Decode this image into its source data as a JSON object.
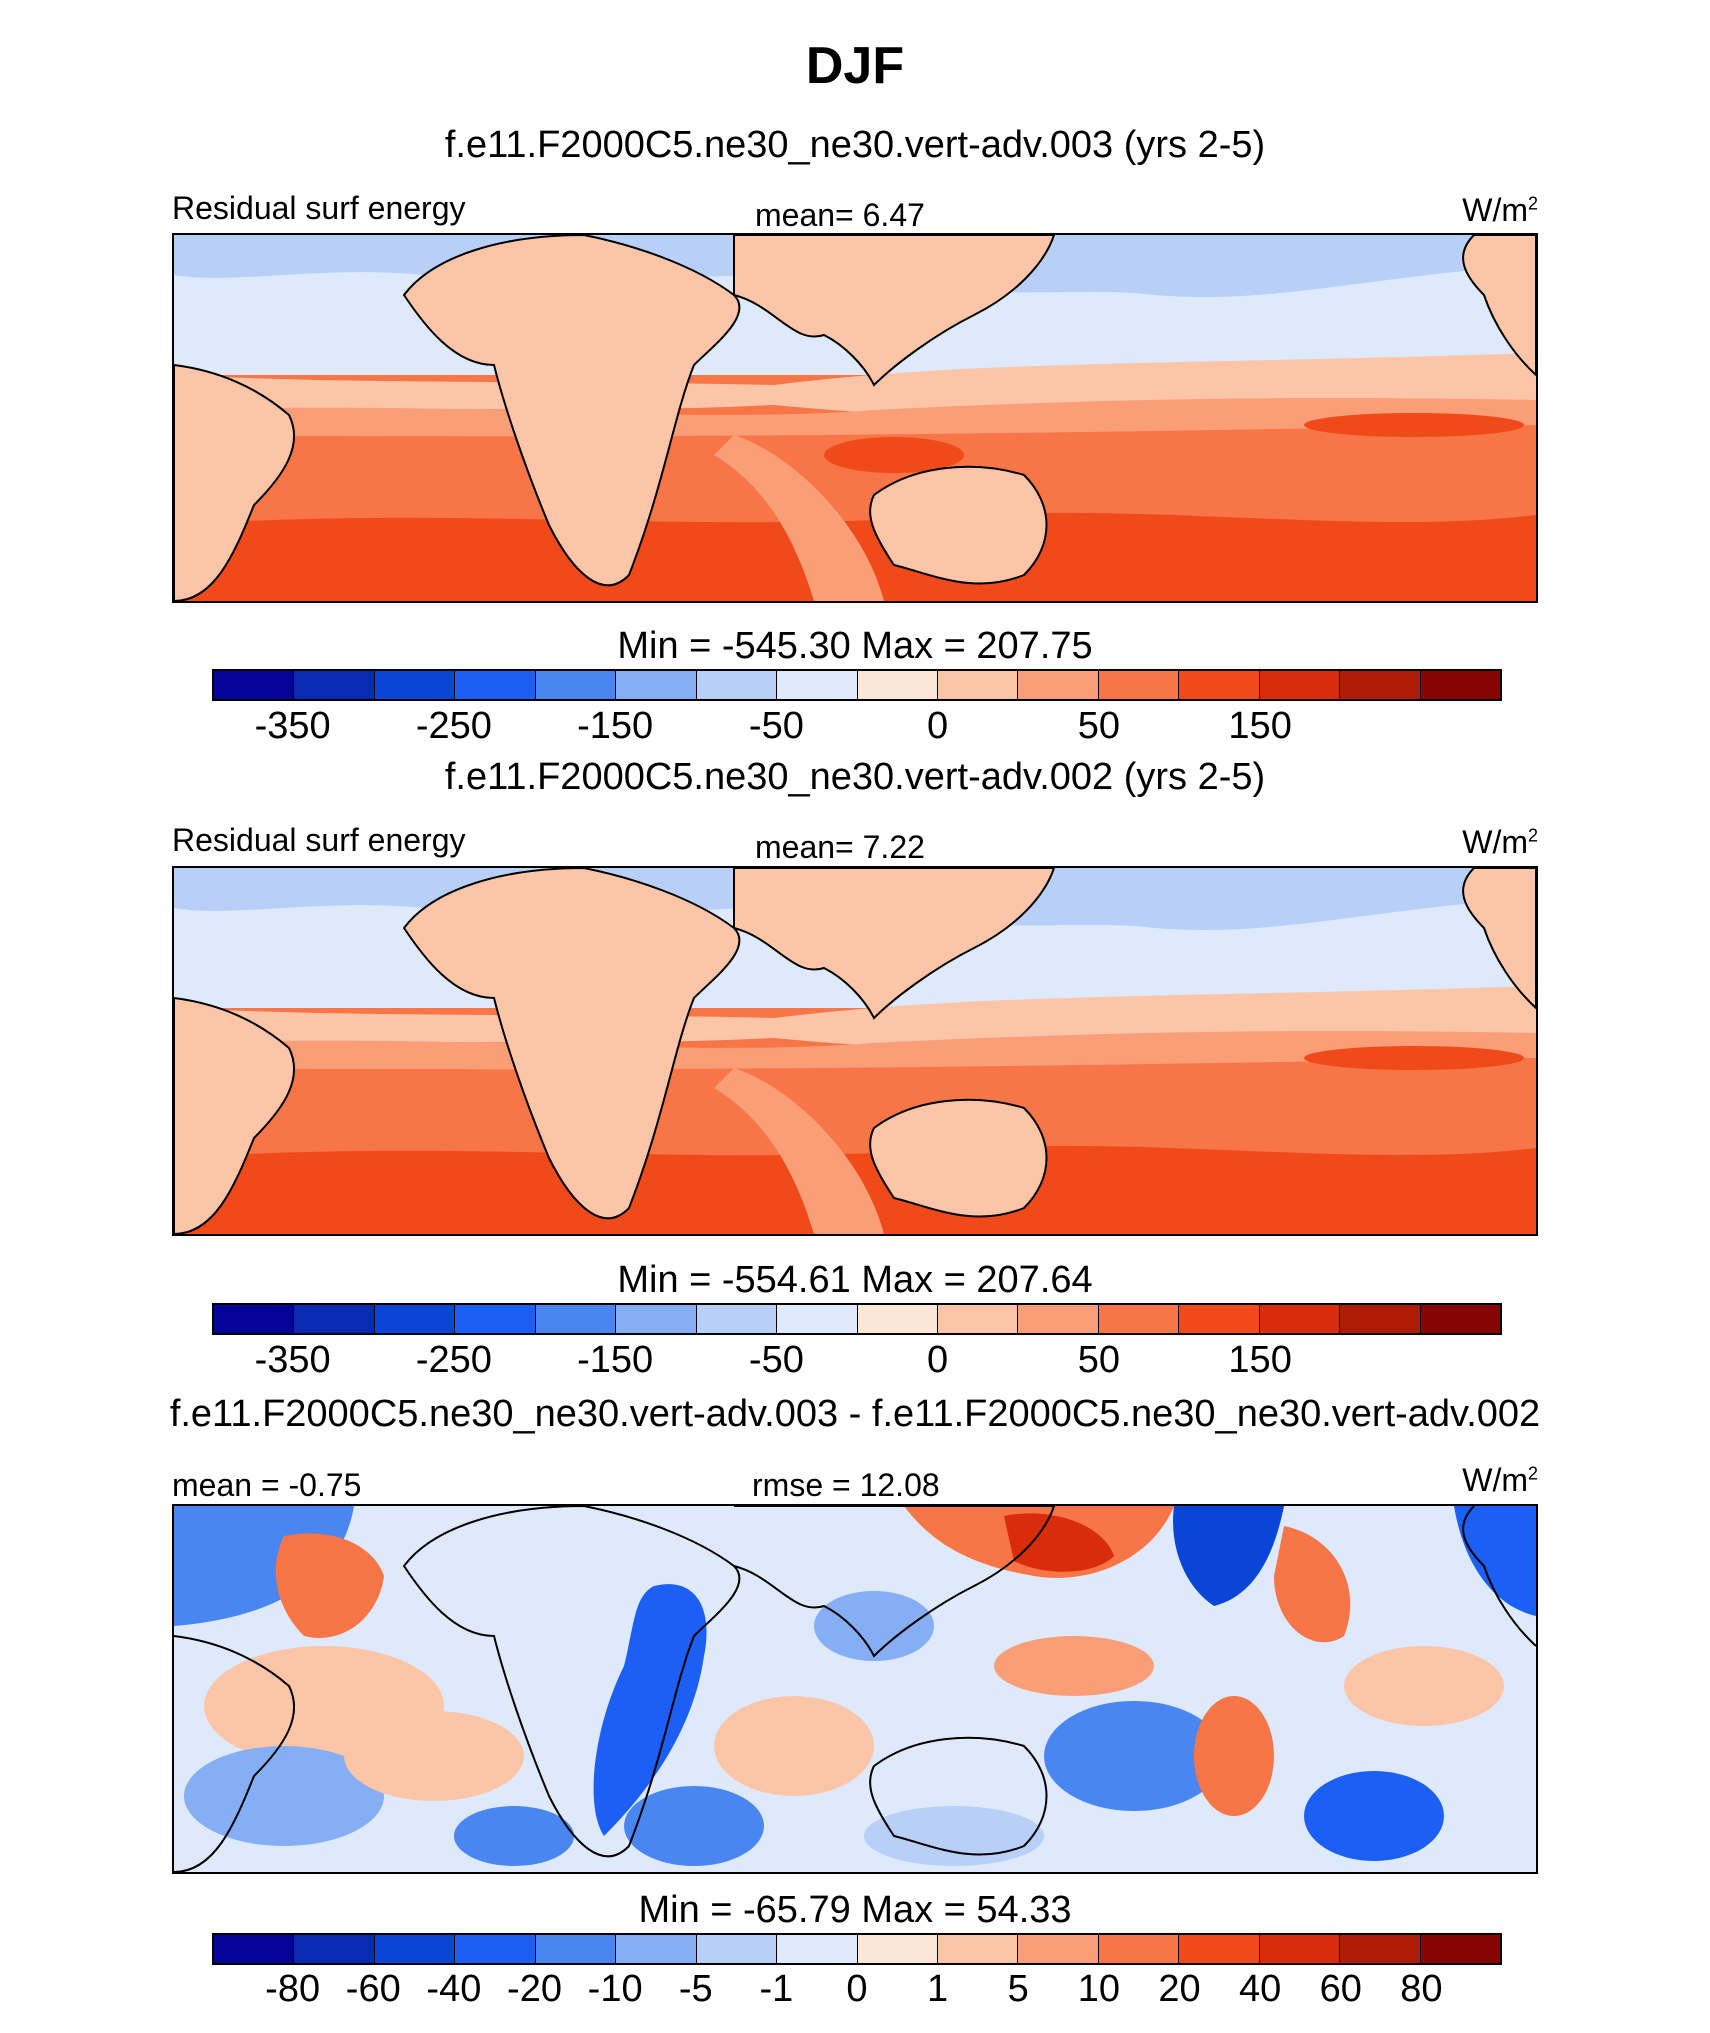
{
  "title": "DJF",
  "units_base": "W/m",
  "units_exp": "2",
  "colormap": [
    "#04049a",
    "#0a2ab4",
    "#0b45d8",
    "#1b5ff4",
    "#4a86f2",
    "#86aef4",
    "#b8cff8",
    "#deeafc",
    "#fde8d8",
    "#fcc5a8",
    "#fa9e78",
    "#f77546",
    "#f04a1a",
    "#d82c0a",
    "#b01b08",
    "#860404"
  ],
  "panels": [
    {
      "case": "f.e11.F2000C5.ne30_ne30.vert-adv.003 (yrs 2-5)",
      "variable": "Residual surf energy",
      "stat": "mean=   6.47",
      "minmax": "Min = -545.30 Max = 207.75",
      "ticks": [
        "-350",
        "-250",
        "-150",
        "-50",
        "0",
        "50",
        "150"
      ],
      "tick_idx": [
        1,
        3,
        5,
        7,
        9,
        11,
        13
      ]
    },
    {
      "case": "f.e11.F2000C5.ne30_ne30.vert-adv.002 (yrs 2-5)",
      "variable": "Residual surf energy",
      "stat": "mean=   7.22",
      "minmax": "Min = -554.61 Max = 207.64",
      "ticks": [
        "-350",
        "-250",
        "-150",
        "-50",
        "0",
        "50",
        "150"
      ],
      "tick_idx": [
        1,
        3,
        5,
        7,
        9,
        11,
        13
      ]
    },
    {
      "case": "f.e11.F2000C5.ne30_ne30.vert-adv.003 - f.e11.F2000C5.ne30_ne30.vert-adv.002",
      "stat_left": "mean =  -0.75",
      "stat": "rmse =  12.08",
      "minmax": "Min = -65.79 Max =  54.33",
      "ticks": [
        "-80",
        "-60",
        "-40",
        "-20",
        "-10",
        "-5",
        "-1",
        "0",
        "1",
        "5",
        "10",
        "20",
        "40",
        "60",
        "80"
      ],
      "tick_idx": [
        1,
        2,
        3,
        4,
        5,
        6,
        7,
        8,
        9,
        10,
        11,
        12,
        13,
        14,
        15
      ]
    }
  ]
}
